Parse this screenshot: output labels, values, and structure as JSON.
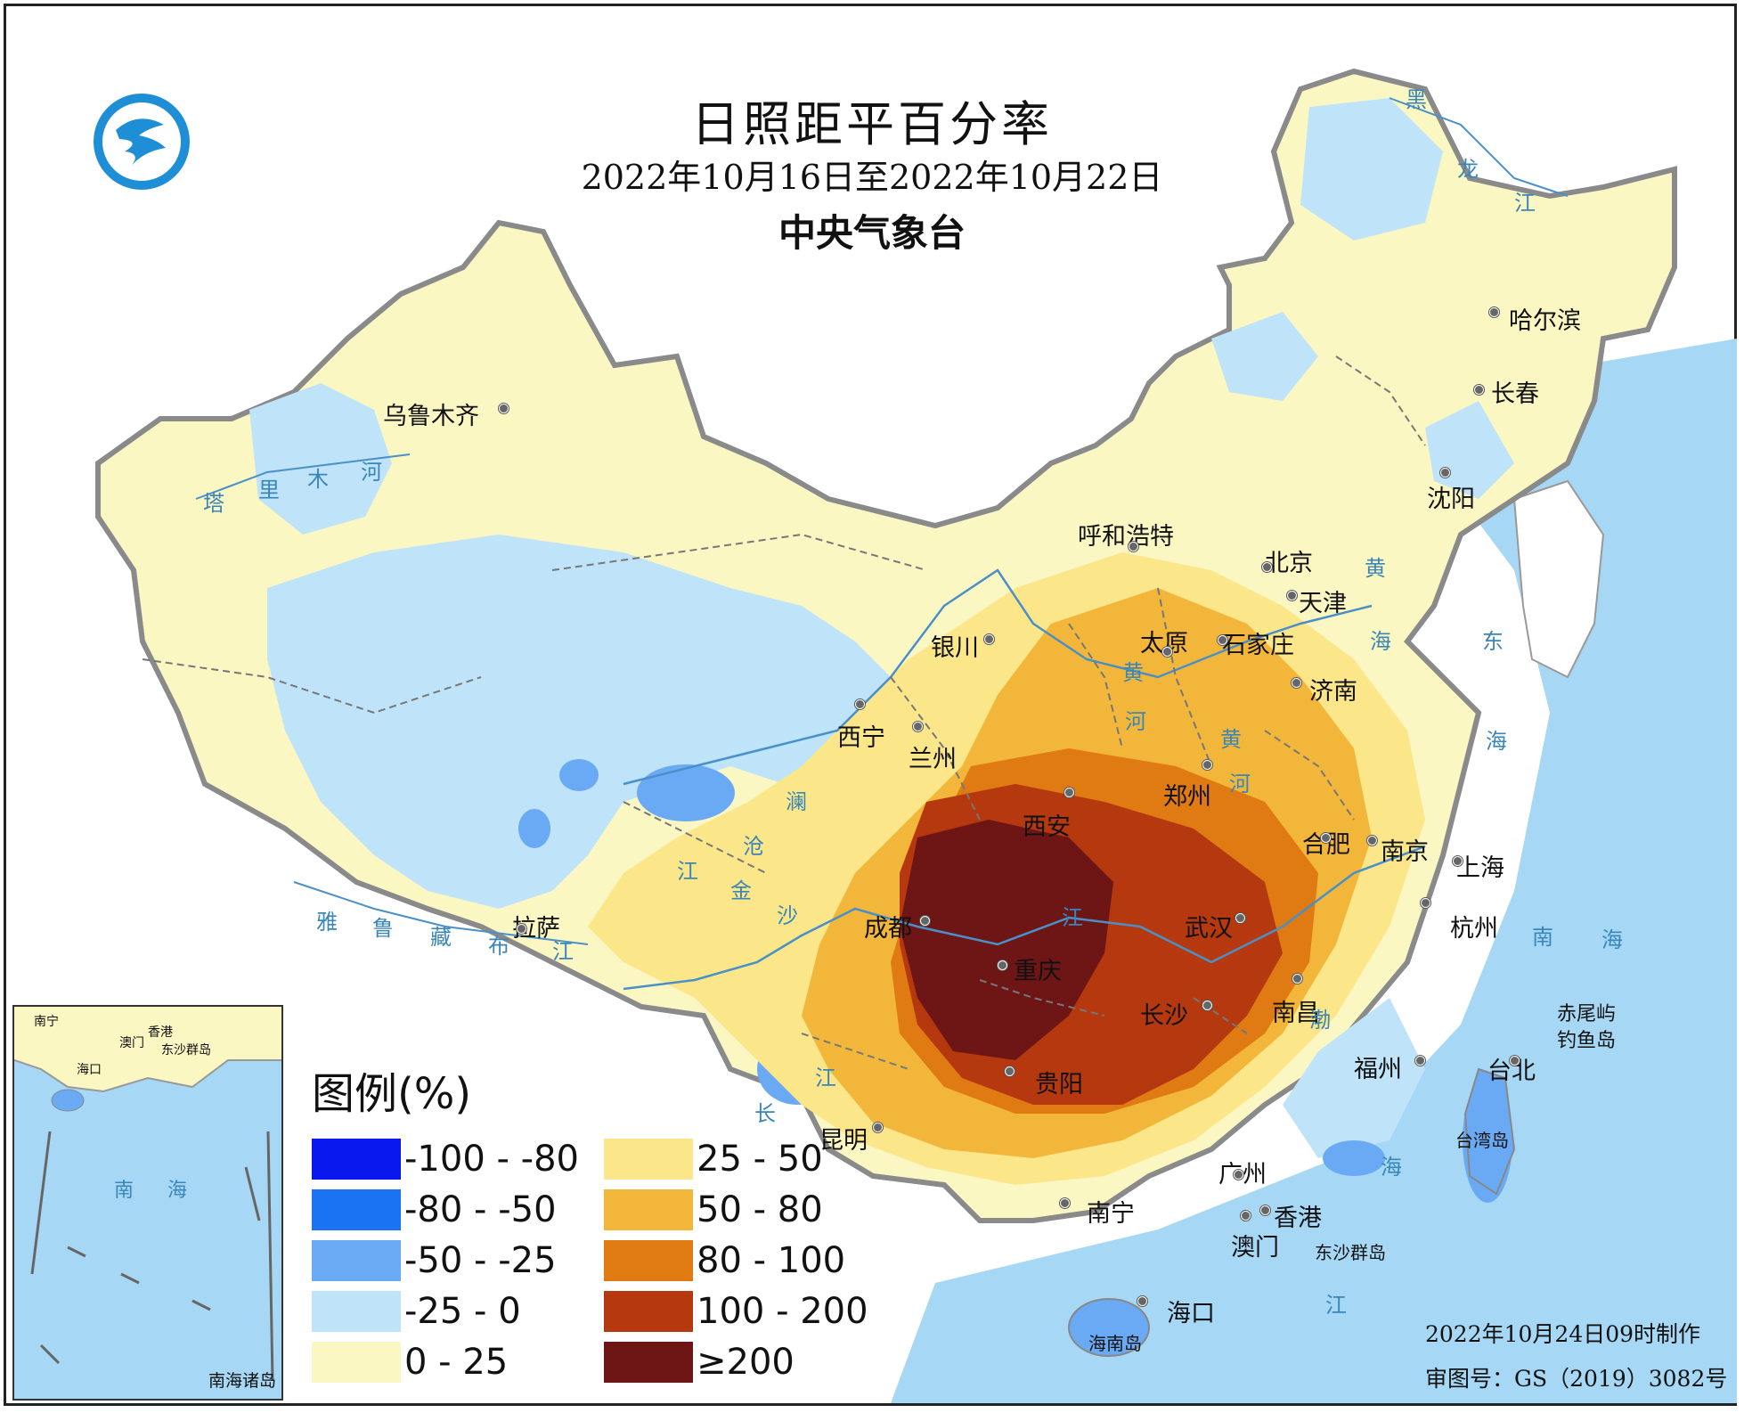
{
  "title": "日照距平百分率",
  "date_range": "2022年10月16日至2022年10月22日",
  "agency": "中央气象台",
  "legend": {
    "title": "图例(%)",
    "items": [
      {
        "label": "-100 - -80",
        "color": "#0a18f0"
      },
      {
        "label": "-80 - -50",
        "color": "#1a73f2"
      },
      {
        "label": "-50 - -25",
        "color": "#6aaaf4"
      },
      {
        "label": "-25 - 0",
        "color": "#bfe3f8"
      },
      {
        "label": "0 - 25",
        "color": "#fbf7c3"
      },
      {
        "label": "25 - 50",
        "color": "#fbe68a"
      },
      {
        "label": "50 - 80",
        "color": "#f2b63a"
      },
      {
        "label": "80 - 100",
        "color": "#e07a12"
      },
      {
        "label": "100 - 200",
        "color": "#b5380f"
      },
      {
        "label": "≥200",
        "color": "#6e1616"
      }
    ]
  },
  "cities": [
    "乌鲁木齐",
    "拉萨",
    "西宁",
    "兰州",
    "银川",
    "呼和浩特",
    "北京",
    "天津",
    "太原",
    "石家庄",
    "济南",
    "郑州",
    "西安",
    "成都",
    "重庆",
    "贵阳",
    "昆明",
    "南宁",
    "长沙",
    "武汉",
    "南昌",
    "合肥",
    "南京",
    "上海",
    "杭州",
    "福州",
    "台北",
    "广州",
    "香港",
    "澳门",
    "海口",
    "哈尔滨",
    "长春",
    "沈阳"
  ],
  "water_labels": [
    "黑",
    "龙",
    "江",
    "塔",
    "里",
    "木",
    "河",
    "雅",
    "鲁",
    "藏",
    "布",
    "江",
    "黄",
    "河",
    "黄",
    "河",
    "澜",
    "沧",
    "江",
    "金",
    "沙",
    "江",
    "长",
    "江",
    "渤",
    "海",
    "黄",
    "海",
    "东",
    "海",
    "南",
    "海",
    "江"
  ],
  "islands": [
    "赤尾屿",
    "钓鱼岛",
    "台湾岛",
    "海南岛",
    "东沙群岛"
  ],
  "inset": {
    "caption": "南海诸岛",
    "labels": [
      "南宁",
      "香港",
      "澳门",
      "东沙群岛",
      "海口",
      "南",
      "海"
    ]
  },
  "footer": {
    "made": "2022年10月24日09时制作",
    "approval": "审图号：GS（2019）3082号"
  }
}
